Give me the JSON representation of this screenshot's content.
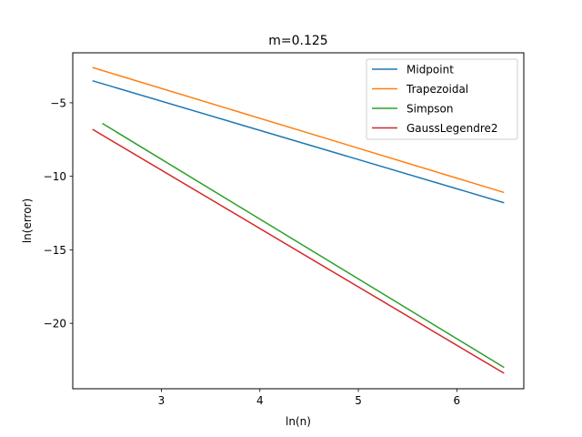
{
  "chart_data": {
    "type": "line",
    "title": "m=0.125",
    "xlabel": "ln(n)",
    "ylabel": "ln(error)",
    "xlim": [
      2.1,
      6.68
    ],
    "ylim": [
      -24.45,
      -1.6
    ],
    "xticks": [
      3,
      4,
      5,
      6
    ],
    "yticks": [
      -5,
      -10,
      -15,
      -20
    ],
    "grid": false,
    "legend_position": "top-right",
    "series": [
      {
        "name": "Midpoint",
        "color": "#1f77b4",
        "x": [
          2.3,
          6.48
        ],
        "y": [
          -3.5,
          -11.8
        ]
      },
      {
        "name": "Trapezoidal",
        "color": "#ff7f0e",
        "x": [
          2.3,
          6.48
        ],
        "y": [
          -2.6,
          -11.1
        ]
      },
      {
        "name": "Simpson",
        "color": "#2ca02c",
        "x": [
          2.4,
          6.48
        ],
        "y": [
          -6.4,
          -23.0
        ]
      },
      {
        "name": "GaussLegendre2",
        "color": "#d62728",
        "x": [
          2.3,
          6.48
        ],
        "y": [
          -6.8,
          -23.4
        ]
      }
    ]
  }
}
